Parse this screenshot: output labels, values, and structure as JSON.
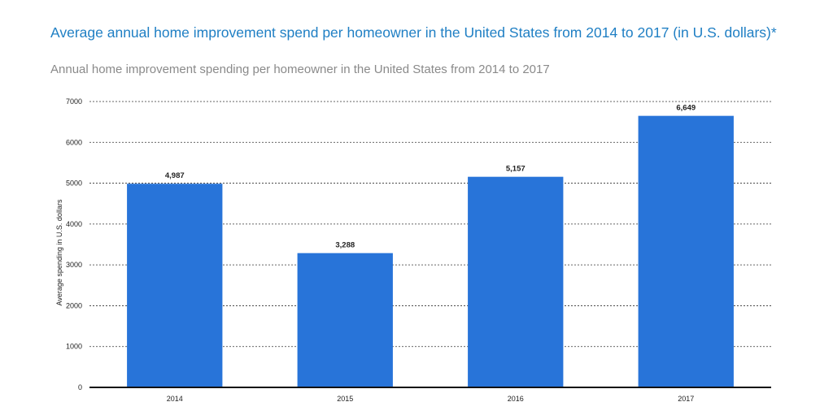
{
  "chart_data": {
    "type": "bar",
    "title": "Average annual home improvement spend per homeowner in the United States from 2014 to 2017 (in U.S. dollars)*",
    "subtitle": "Annual home improvement spending per homeowner in the United States from 2014 to 2017",
    "xlabel": "",
    "ylabel": "Average spending in U.S. dollars",
    "categories": [
      "2014",
      "2015",
      "2016",
      "2017"
    ],
    "values": [
      4987,
      3288,
      5157,
      6649
    ],
    "data_labels": [
      "4,987",
      "3,288",
      "5,157",
      "6,649"
    ],
    "ylim": [
      0,
      7000
    ],
    "yticks": [
      0,
      1000,
      2000,
      3000,
      4000,
      5000,
      6000,
      7000
    ],
    "grid": true,
    "legend": "none",
    "bar_color": "#2874d9"
  }
}
